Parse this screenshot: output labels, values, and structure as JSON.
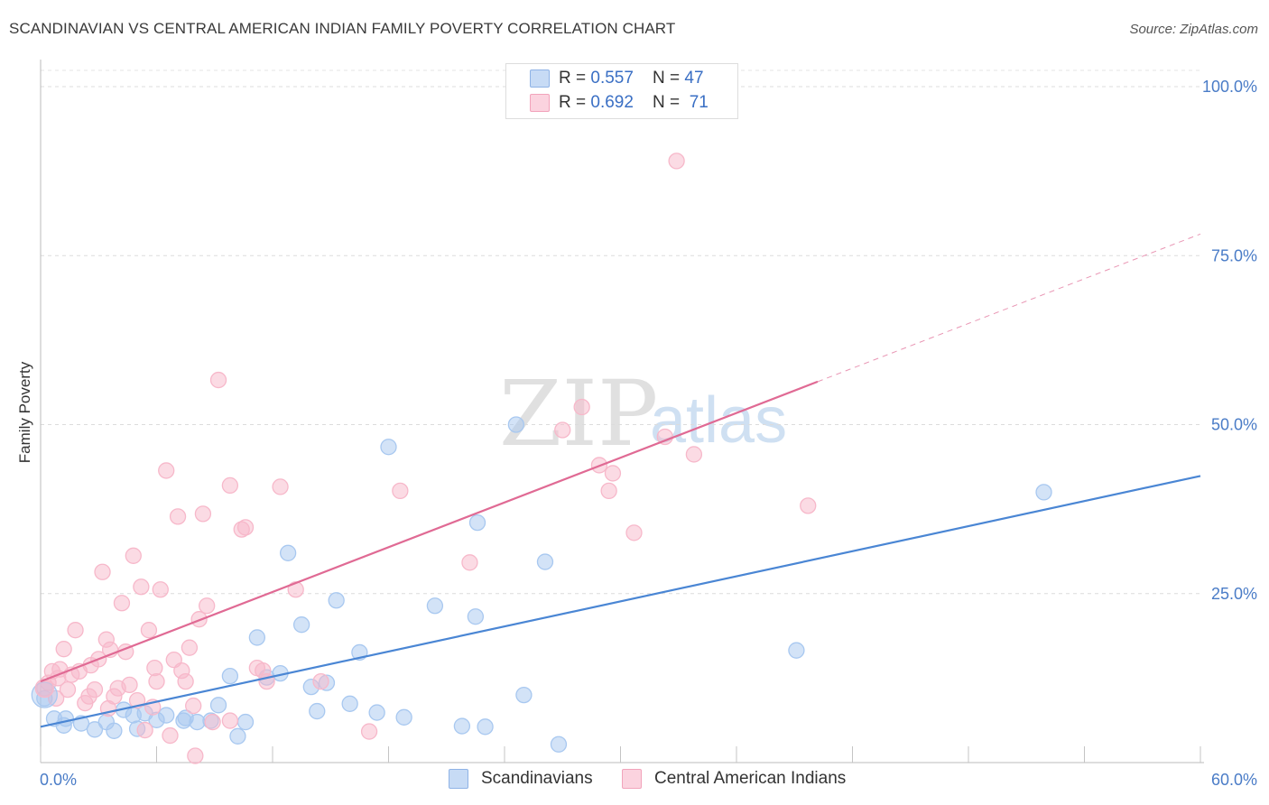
{
  "title": "SCANDINAVIAN VS CENTRAL AMERICAN INDIAN FAMILY POVERTY CORRELATION CHART",
  "source": "Source: ZipAtlas.com",
  "watermark": {
    "zip": "ZIP",
    "atlas": "atlas"
  },
  "legend_top": {
    "rows": [
      {
        "r_label": "R = ",
        "r_value": "0.557",
        "n_label": "N = ",
        "n_value": "47",
        "color": "#a8c8f0"
      },
      {
        "r_label": "R = ",
        "r_value": "0.692",
        "n_label": "N = ",
        "n_value": "71",
        "color": "#f7b8ca"
      }
    ]
  },
  "legend_bottom": {
    "items": [
      {
        "label": "Scandinavians",
        "color": "#a8c8f0"
      },
      {
        "label": "Central American Indians",
        "color": "#f7b8ca"
      }
    ]
  },
  "chart_data": {
    "type": "scatter",
    "title": "SCANDINAVIAN VS CENTRAL AMERICAN INDIAN FAMILY POVERTY CORRELATION CHART",
    "xlabel": "",
    "ylabel": "Family Poverty",
    "xlim": [
      0,
      60
    ],
    "ylim": [
      0,
      100
    ],
    "x_tick_labels": [
      "0.0%",
      "60.0%"
    ],
    "y_tick_labels": [
      "25.0%",
      "50.0%",
      "75.0%",
      "100.0%"
    ],
    "y_ticks": [
      25,
      50,
      75,
      100
    ],
    "grid": true,
    "legend_position": "top-center",
    "series": [
      {
        "name": "Scandinavians",
        "color": "#4a86d4",
        "fill": "#a8c8f0",
        "trend": {
          "x": [
            0,
            60
          ],
          "y": [
            5.3,
            42.4
          ],
          "solid_until": 60
        },
        "points": [
          [
            0.2,
            9.5
          ],
          [
            0.7,
            6.5
          ],
          [
            1.3,
            6.5
          ],
          [
            2.1,
            5.8
          ],
          [
            2.8,
            4.9
          ],
          [
            3.4,
            6.0
          ],
          [
            3.8,
            4.7
          ],
          [
            4.3,
            7.8
          ],
          [
            4.8,
            7.0
          ],
          [
            5.4,
            7.3
          ],
          [
            6.0,
            6.3
          ],
          [
            6.5,
            7.0
          ],
          [
            7.5,
            6.6
          ],
          [
            8.1,
            6.0
          ],
          [
            9.2,
            8.5
          ],
          [
            9.8,
            12.8
          ],
          [
            10.2,
            3.9
          ],
          [
            10.6,
            6.0
          ],
          [
            11.2,
            18.5
          ],
          [
            11.7,
            12.6
          ],
          [
            12.4,
            13.2
          ],
          [
            12.8,
            31.0
          ],
          [
            13.5,
            20.4
          ],
          [
            14.0,
            11.2
          ],
          [
            14.3,
            7.6
          ],
          [
            14.8,
            11.8
          ],
          [
            15.3,
            24.0
          ],
          [
            16.0,
            8.7
          ],
          [
            16.5,
            16.3
          ],
          [
            17.4,
            7.4
          ],
          [
            18.0,
            46.7
          ],
          [
            18.8,
            6.7
          ],
          [
            20.4,
            23.2
          ],
          [
            21.8,
            5.4
          ],
          [
            22.5,
            21.6
          ],
          [
            22.6,
            35.5
          ],
          [
            23.0,
            5.3
          ],
          [
            24.6,
            50.0
          ],
          [
            26.1,
            29.7
          ],
          [
            26.8,
            2.7
          ],
          [
            25.0,
            10.0
          ],
          [
            7.4,
            6.2
          ],
          [
            8.8,
            6.2
          ],
          [
            5.0,
            5.0
          ],
          [
            1.2,
            5.5
          ],
          [
            39.1,
            16.6
          ],
          [
            51.9,
            40.0
          ]
        ]
      },
      {
        "name": "Central American Indians",
        "color": "#e06a94",
        "fill": "#f7b8ca",
        "trend": {
          "x": [
            0,
            60
          ],
          "y": [
            12.0,
            78.2
          ],
          "solid_until": 40.2
        },
        "points": [
          [
            0.2,
            11.0
          ],
          [
            0.4,
            11.8
          ],
          [
            0.6,
            13.5
          ],
          [
            0.9,
            12.5
          ],
          [
            1.2,
            16.8
          ],
          [
            1.4,
            10.8
          ],
          [
            1.6,
            13.0
          ],
          [
            1.8,
            19.6
          ],
          [
            2.0,
            13.5
          ],
          [
            2.3,
            8.8
          ],
          [
            2.5,
            9.8
          ],
          [
            2.8,
            10.8
          ],
          [
            3.0,
            15.3
          ],
          [
            3.2,
            28.2
          ],
          [
            3.4,
            18.2
          ],
          [
            3.6,
            16.7
          ],
          [
            3.8,
            9.8
          ],
          [
            4.0,
            11.0
          ],
          [
            4.2,
            23.6
          ],
          [
            4.4,
            16.4
          ],
          [
            4.6,
            11.5
          ],
          [
            4.8,
            30.6
          ],
          [
            5.0,
            9.2
          ],
          [
            5.2,
            26.0
          ],
          [
            5.4,
            4.8
          ],
          [
            5.6,
            19.6
          ],
          [
            5.8,
            8.2
          ],
          [
            6.0,
            12.0
          ],
          [
            6.2,
            25.6
          ],
          [
            6.5,
            43.2
          ],
          [
            6.7,
            4.0
          ],
          [
            6.9,
            15.2
          ],
          [
            7.1,
            36.4
          ],
          [
            7.3,
            13.6
          ],
          [
            7.5,
            12.0
          ],
          [
            7.7,
            17.0
          ],
          [
            7.9,
            8.4
          ],
          [
            8.0,
            1.0
          ],
          [
            8.2,
            21.2
          ],
          [
            8.4,
            36.8
          ],
          [
            8.6,
            23.2
          ],
          [
            8.9,
            6.0
          ],
          [
            9.2,
            56.6
          ],
          [
            9.8,
            41.0
          ],
          [
            10.4,
            34.5
          ],
          [
            10.6,
            34.8
          ],
          [
            11.2,
            14.0
          ],
          [
            11.5,
            13.6
          ],
          [
            11.7,
            12.0
          ],
          [
            12.4,
            40.8
          ],
          [
            13.2,
            25.6
          ],
          [
            14.5,
            12.0
          ],
          [
            17.0,
            4.6
          ],
          [
            18.6,
            40.2
          ],
          [
            22.2,
            29.6
          ],
          [
            27.0,
            49.2
          ],
          [
            28.0,
            52.6
          ],
          [
            28.9,
            44.0
          ],
          [
            29.4,
            40.2
          ],
          [
            29.6,
            42.8
          ],
          [
            30.7,
            34.0
          ],
          [
            32.3,
            48.2
          ],
          [
            32.9,
            89.0
          ],
          [
            33.8,
            45.6
          ],
          [
            39.7,
            38.0
          ],
          [
            1.0,
            13.8
          ],
          [
            2.6,
            14.4
          ],
          [
            5.9,
            14.0
          ],
          [
            3.5,
            8.0
          ],
          [
            9.8,
            6.2
          ],
          [
            0.8,
            9.5
          ]
        ]
      }
    ]
  }
}
